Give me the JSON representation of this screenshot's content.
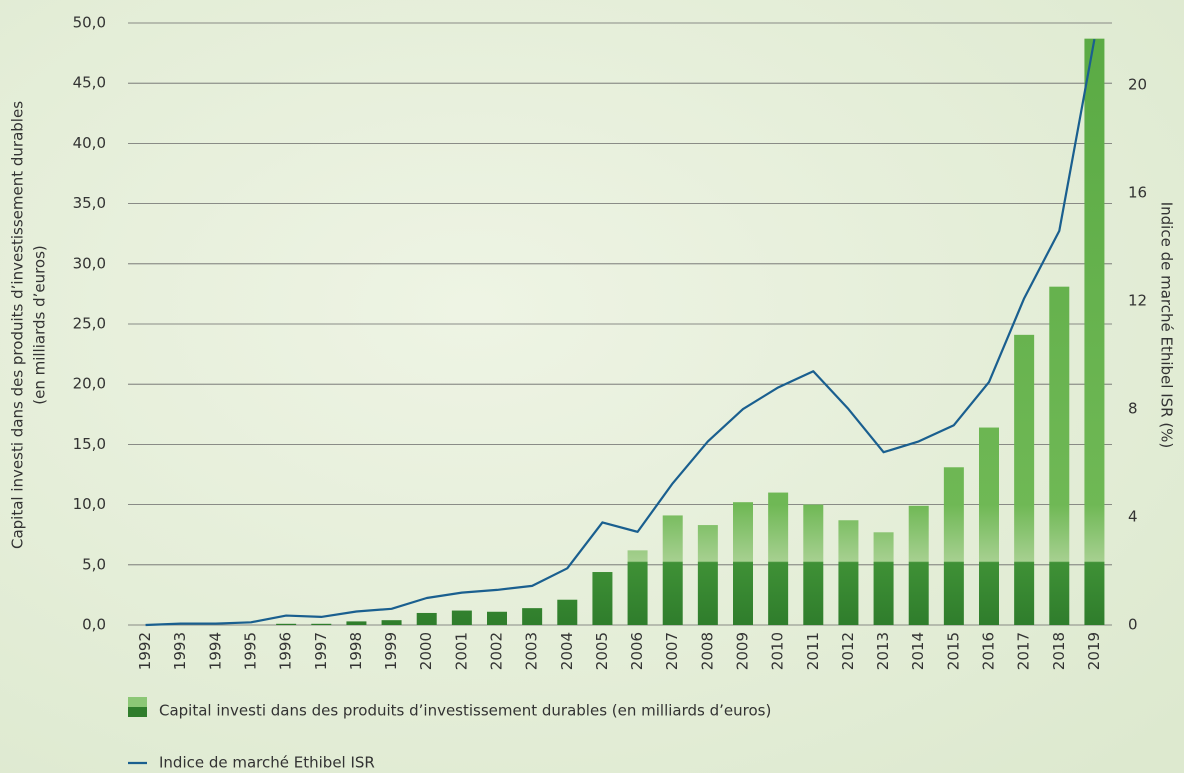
{
  "chart_data": {
    "type": "bar",
    "ylabel": [
      "Capital investi dans des produits d’investissement durables",
      "(en milliards d’euros)"
    ],
    "y2label": "Indice de marché Ethibel ISR (%)",
    "categories": [
      "1992",
      "1993",
      "1994",
      "1995",
      "1996",
      "1997",
      "1998",
      "1999",
      "2000",
      "2001",
      "2002",
      "2003",
      "2004",
      "2005",
      "2006",
      "2007",
      "2008",
      "2009",
      "2010",
      "2011",
      "2012",
      "2013",
      "2014",
      "2015",
      "2016",
      "2017",
      "2018",
      "2019"
    ],
    "series": [
      {
        "name": "Capital investi dans des produits d’investissement durables (en milliards d’euros)",
        "type": "bar",
        "color": "#4f9e3e",
        "values": [
          0,
          0,
          0,
          0,
          0.1,
          0.1,
          0.3,
          0.4,
          1.0,
          1.2,
          1.1,
          1.4,
          2.1,
          4.4,
          6.2,
          9.1,
          8.3,
          10.2,
          11.0,
          10.0,
          8.7,
          7.7,
          9.9,
          13.1,
          16.4,
          24.1,
          28.1,
          48.7
        ]
      },
      {
        "name": "Indice de marché Ethibel ISR",
        "type": "line",
        "axis": "y2",
        "color": "#1a5f8f",
        "values": [
          0,
          0.05,
          0.05,
          0.1,
          0.35,
          0.3,
          0.5,
          0.6,
          1.0,
          1.2,
          1.3,
          1.45,
          2.1,
          3.8,
          3.45,
          5.25,
          6.8,
          8.0,
          8.8,
          9.4,
          8.0,
          6.4,
          6.8,
          7.4,
          9.0,
          12.1,
          14.6,
          21.7
        ]
      }
    ],
    "ylim": [
      0,
      50
    ],
    "yticks": [
      {
        "value": 0,
        "label": "0,0"
      },
      {
        "value": 5,
        "label": "5,0"
      },
      {
        "value": 10,
        "label": "10,0"
      },
      {
        "value": 15,
        "label": "15,0"
      },
      {
        "value": 20,
        "label": "20,0"
      },
      {
        "value": 25,
        "label": "25,0"
      },
      {
        "value": 30,
        "label": "30,0"
      },
      {
        "value": 35,
        "label": "35,0"
      },
      {
        "value": 40,
        "label": "40,0"
      },
      {
        "value": 45,
        "label": "45,0"
      },
      {
        "value": 50,
        "label": "50,0"
      }
    ],
    "y2lim": [
      0,
      22.3
    ],
    "y2ticks": [
      0,
      4,
      8,
      12,
      16,
      20
    ],
    "grid": true
  }
}
